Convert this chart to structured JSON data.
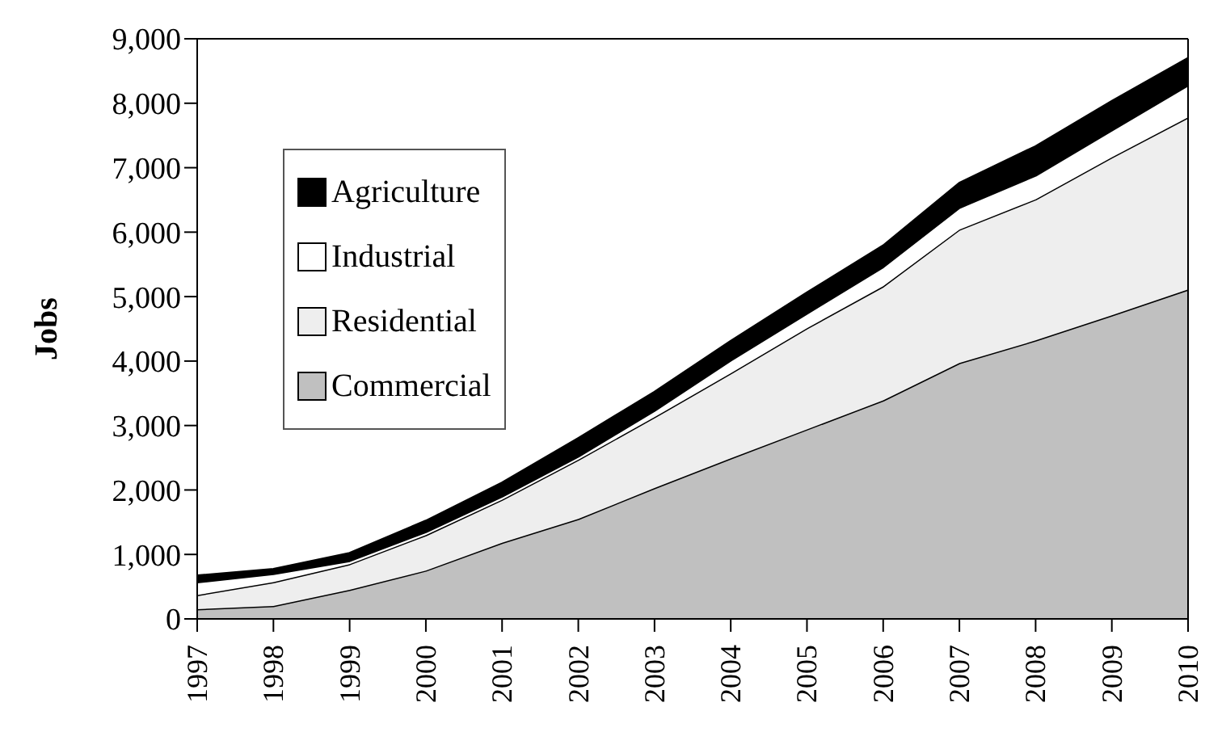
{
  "chart_data": {
    "type": "area",
    "stacked": true,
    "ylabel": "Jobs",
    "x": [
      1997,
      1998,
      1999,
      2000,
      2001,
      2002,
      2003,
      2004,
      2005,
      2006,
      2007,
      2008,
      2009,
      2010
    ],
    "xlim": [
      1997,
      2010
    ],
    "xticks": [
      1997,
      1998,
      1999,
      2000,
      2001,
      2002,
      2003,
      2004,
      2005,
      2006,
      2007,
      2008,
      2009,
      2010
    ],
    "ylim": [
      0,
      9000
    ],
    "yticks": [
      0,
      {
        "value": 1000,
        "label": "1,000"
      },
      {
        "value": 2000,
        "label": "2,000"
      },
      {
        "value": 3000,
        "label": "3,000"
      },
      {
        "value": 4000,
        "label": "4,000"
      },
      {
        "value": 5000,
        "label": "5,000"
      },
      {
        "value": 6000,
        "label": "6,000"
      },
      {
        "value": 7000,
        "label": "7,000"
      },
      {
        "value": 8000,
        "label": "8,000"
      },
      {
        "value": 9000,
        "label": "9,000"
      }
    ],
    "grid": false,
    "legend": "left",
    "series": [
      {
        "name": "Commercial",
        "color": "#c0c0c0",
        "values": [
          150,
          200,
          450,
          750,
          1180,
          1550,
          2030,
          2490,
          2940,
          3390,
          3970,
          4320,
          4710,
          5110
        ]
      },
      {
        "name": "Residential",
        "color": "#eeeeee",
        "values": [
          220,
          370,
          400,
          550,
          670,
          920,
          1100,
          1320,
          1570,
          1770,
          2070,
          2190,
          2450,
          2670
        ]
      },
      {
        "name": "Industrial",
        "color": "#ffffff",
        "values": [
          200,
          130,
          50,
          50,
          50,
          50,
          100,
          200,
          230,
          300,
          340,
          370,
          420,
          500
        ]
      },
      {
        "name": "Agriculture",
        "color": "#000000",
        "values": [
          100,
          70,
          120,
          170,
          210,
          280,
          290,
          300,
          320,
          330,
          380,
          450,
          450,
          420
        ]
      }
    ]
  }
}
